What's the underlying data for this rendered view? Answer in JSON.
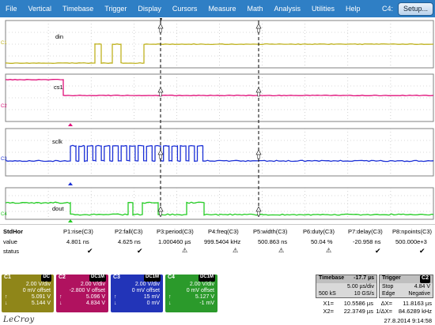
{
  "menu": {
    "items": [
      "File",
      "Vertical",
      "Timebase",
      "Trigger",
      "Display",
      "Cursors",
      "Measure",
      "Math",
      "Analysis",
      "Utilities",
      "Help"
    ],
    "context": "C4:",
    "setup": "Setup..."
  },
  "traces": {
    "c1": {
      "name": "din",
      "label": "C1",
      "color": "#bfb21f"
    },
    "c2": {
      "name": "cs1",
      "label": "C2",
      "color": "#e0107a"
    },
    "c3": {
      "name": "sclk",
      "label": "C3",
      "color": "#1a2fd6"
    },
    "c4": {
      "name": "dout",
      "label": "C4",
      "color": "#22cc22"
    }
  },
  "measure": {
    "title": "StdHor",
    "row_labels": {
      "value": "value",
      "status": "status"
    },
    "params": [
      {
        "name": "P1:rise(C3)",
        "value": "4.801 ns",
        "status": "check"
      },
      {
        "name": "P2:fall(C3)",
        "value": "4.625 ns",
        "status": "check"
      },
      {
        "name": "P3:period(C3)",
        "value": "1.000460 µs",
        "status": "warn"
      },
      {
        "name": "P4:freq(C3)",
        "value": "999.5404 kHz",
        "status": "warn"
      },
      {
        "name": "P5:width(C3)",
        "value": "500.863 ns",
        "status": "warn"
      },
      {
        "name": "P6:duty(C3)",
        "value": "50.04 %",
        "status": "warn"
      },
      {
        "name": "P7:delay(C3)",
        "value": "-20.958 ns",
        "status": "check"
      },
      {
        "name": "P8:npoints(C3)",
        "value": "500.000e+3",
        "status": "check"
      }
    ]
  },
  "channels": [
    {
      "id": "C1",
      "tag": "DC",
      "vdiv": "2.00 V/div",
      "offset": "0 mV offset",
      "top": "5.091 V",
      "bot": "5.144 V",
      "color": "#8f8619"
    },
    {
      "id": "C2",
      "tag": "DC1M",
      "vdiv": "2.00 V/div",
      "offset": "-2.800 V offset",
      "top": "5.096 V",
      "bot": "4.834 V",
      "color": "#b0125f"
    },
    {
      "id": "C3",
      "tag": "DC1M",
      "vdiv": "2.00 V/div",
      "offset": "0 mV offset",
      "top": "15 mV",
      "bot": "0 mV",
      "color": "#2234b8"
    },
    {
      "id": "C4",
      "tag": "DC1M",
      "vdiv": "2.00 V/div",
      "offset": "0 mV offset",
      "top": "5.127 V",
      "bot": "-1 mV",
      "color": "#2b9a2b"
    }
  ],
  "timebase": {
    "title": "Timebase",
    "delay": "-17.7 µs",
    "div": "5.00 µs/div",
    "samples": "500 kS",
    "rate": "10 GS/s"
  },
  "trigger": {
    "title": "Trigger",
    "tag": "C2",
    "mode": "Stop",
    "level": "4.84 V",
    "type": "Edge",
    "slope": "Negative"
  },
  "cursors": {
    "x1_k": "X1=",
    "x1_v": "10.5586 µs",
    "dx_k": "ΔX=",
    "dx_v": "11.8163 µs",
    "x2_k": "X2=",
    "x2_v": "22.3749 µs",
    "inv_k": "1/ΔX=",
    "inv_v": "84.6289 kHz"
  },
  "brand": "LeCroy",
  "datetime": "27.8.2014 9:14:58"
}
